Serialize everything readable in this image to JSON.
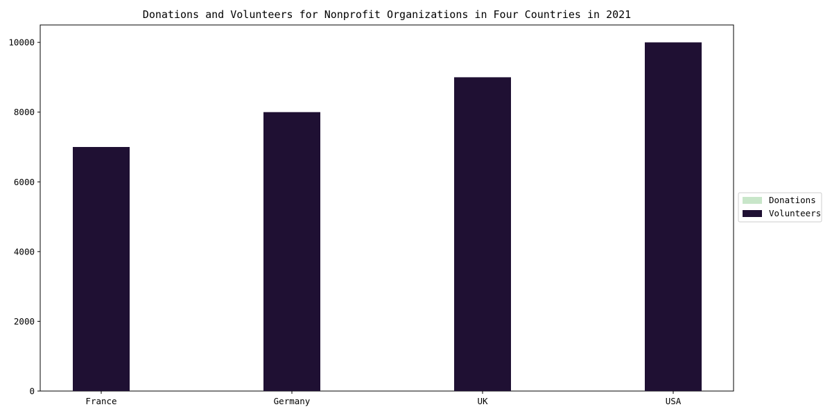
{
  "chart_data": {
    "type": "bar",
    "title": "Donations and Volunteers for Nonprofit Organizations in Four Countries in 2021",
    "categories": [
      "France",
      "Germany",
      "UK",
      "USA"
    ],
    "series": [
      {
        "name": "Donations",
        "values": [
          0,
          0,
          0,
          0
        ],
        "color": "#c8e6c9"
      },
      {
        "name": "Volunteers",
        "values": [
          7000,
          8000,
          9000,
          10000
        ],
        "color": "#1f1033"
      }
    ],
    "ylim": [
      0,
      10500
    ],
    "yticks": [
      "0",
      "2000",
      "4000",
      "6000",
      "8000",
      "10000"
    ],
    "xlabel": "",
    "ylabel": "",
    "legend": {
      "placement": "right-center"
    },
    "grid": false
  }
}
